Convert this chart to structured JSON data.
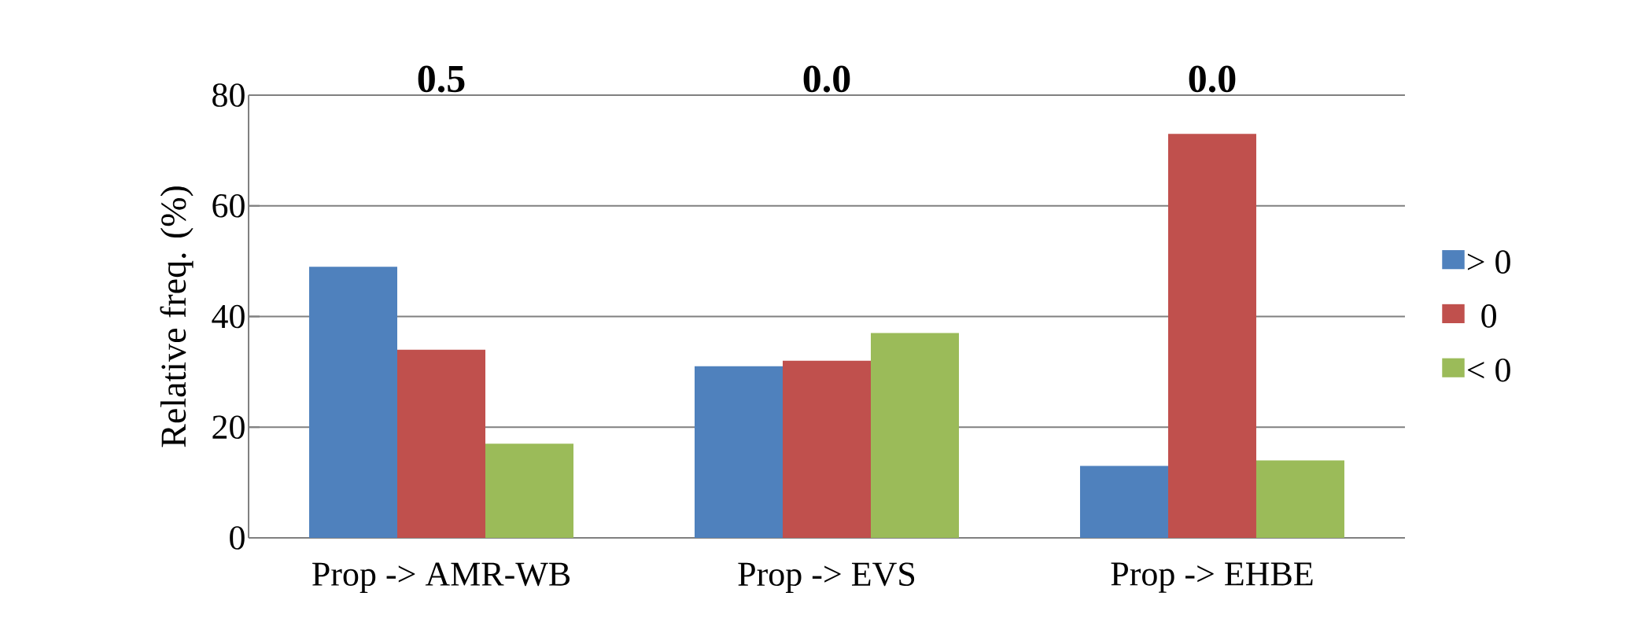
{
  "chart_data": {
    "type": "bar",
    "ylabel": "Relative freq. (%)",
    "categories": [
      "Prop -> AMR-WB",
      "Prop -> EVS",
      "Prop -> EHBE"
    ],
    "series": [
      {
        "name": "> 0",
        "color": "#4f81bd",
        "values": [
          49,
          31,
          13
        ]
      },
      {
        "name": "0",
        "color": "#c0504d",
        "values": [
          34,
          32,
          73
        ]
      },
      {
        "name": "< 0",
        "color": "#9bbb59",
        "values": [
          17,
          37,
          14
        ]
      }
    ],
    "ylim": [
      0,
      80
    ],
    "yticks": [
      0,
      20,
      40,
      60,
      80
    ],
    "grid": "y",
    "legend": "right",
    "annotations": [
      "0.5",
      "0.0",
      "0.0"
    ]
  }
}
